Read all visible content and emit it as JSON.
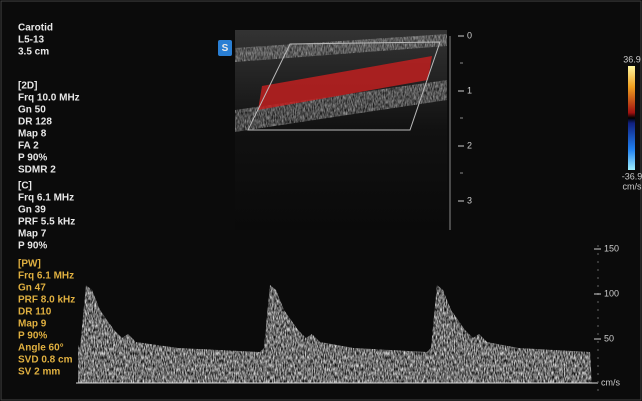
{
  "header": {
    "preset": "Carotid",
    "probe": "L5-13",
    "depth": "3.5 cm"
  },
  "sections": [
    {
      "title": "[2D]",
      "lines": [
        "Frq 10.0 MHz",
        "Gn  50",
        "DR  128",
        "Map 8",
        "FA  2",
        "P    90%",
        "SDMR 2"
      ]
    },
    {
      "title": "[C]",
      "lines": [
        "Frq 6.1 MHz",
        "Gn  39",
        "PRF 5.5 kHz",
        "Map 7",
        "P    90%"
      ]
    },
    {
      "title": "[PW]",
      "lines": [
        "Frq 6.1 MHz",
        "Gn  47",
        "PRF 8.0 kHz",
        "DR  110",
        "Map 9",
        "P    90%",
        "Angle 60°",
        "SVD 0.8 cm",
        "SV  2 mm"
      ]
    }
  ],
  "icon": "S",
  "depth_scale": [
    "0",
    "1",
    "2",
    "3"
  ],
  "color_scale": {
    "max": "36.9",
    "min": "-36.9",
    "unit": "cm/s"
  },
  "spectral_scale": {
    "labels": [
      "150",
      "100",
      "50"
    ],
    "unit": "cm/s"
  }
}
